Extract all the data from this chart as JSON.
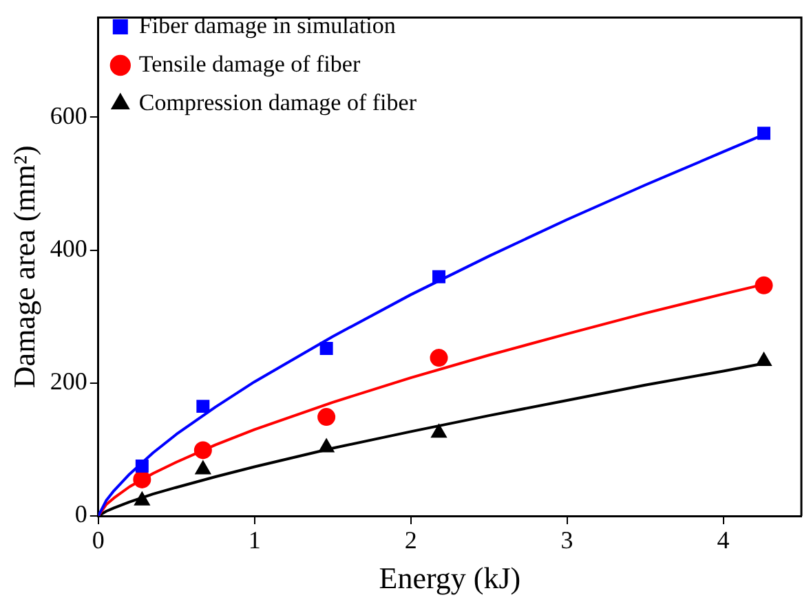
{
  "chart_data": {
    "type": "scatter",
    "xlabel": "Energy (kJ)",
    "ylabel": "Damage area (mm²)",
    "xlim": [
      0,
      4.5
    ],
    "ylim": [
      0,
      750
    ],
    "xticks": [
      0,
      1,
      2,
      3,
      4
    ],
    "yticks": [
      0,
      200,
      400,
      600
    ],
    "grid": false,
    "legend": "top left",
    "series": [
      {
        "name": "Fiber damage in simulation",
        "color": "#0000ff",
        "type": "scatter",
        "marker": "square",
        "x": [
          0.28,
          0.67,
          1.46,
          2.18,
          4.26
        ],
        "values": [
          75,
          165,
          252,
          360,
          576
        ]
      },
      {
        "name": "Tensile damage of fiber",
        "color": "#ff0000",
        "type": "scatter",
        "marker": "circle",
        "x": [
          0.28,
          0.67,
          1.46,
          2.18,
          4.26
        ],
        "values": [
          55,
          99,
          149,
          238,
          347
        ]
      },
      {
        "name": "Compression damage of fiber",
        "color": "#000000",
        "type": "scatter",
        "marker": "triangle",
        "x": [
          0.28,
          0.67,
          1.46,
          2.18,
          4.26
        ],
        "values": [
          23,
          70,
          103,
          125,
          233
        ]
      },
      {
        "color": "#0000ff",
        "type": "line",
        "marker": "none",
        "x": [
          0,
          0.05,
          0.1,
          0.2,
          0.35,
          0.5,
          0.75,
          1,
          1.5,
          2,
          2.5,
          3,
          3.5,
          4,
          4.25
        ],
        "values": [
          0,
          23,
          38,
          63,
          95,
          123,
          164,
          202,
          270,
          333,
          391,
          446,
          498,
          548,
          573
        ]
      },
      {
        "color": "#ff0000",
        "type": "line",
        "marker": "none",
        "x": [
          0,
          0.05,
          0.1,
          0.2,
          0.35,
          0.5,
          0.75,
          1,
          1.5,
          2,
          2.5,
          3,
          3.5,
          4,
          4.25
        ],
        "values": [
          0,
          17,
          27,
          44,
          64,
          81,
          107,
          130,
          171,
          208,
          242,
          274,
          305,
          334,
          348
        ]
      },
      {
        "color": "#000000",
        "type": "line",
        "marker": "none",
        "x": [
          0,
          0.05,
          0.1,
          0.2,
          0.35,
          0.5,
          0.75,
          1,
          1.5,
          2,
          2.5,
          3,
          3.5,
          4,
          4.25
        ],
        "values": [
          0,
          7,
          12,
          21,
          33,
          43,
          59,
          74,
          102,
          127,
          151,
          174,
          197,
          218,
          229
        ]
      }
    ]
  }
}
